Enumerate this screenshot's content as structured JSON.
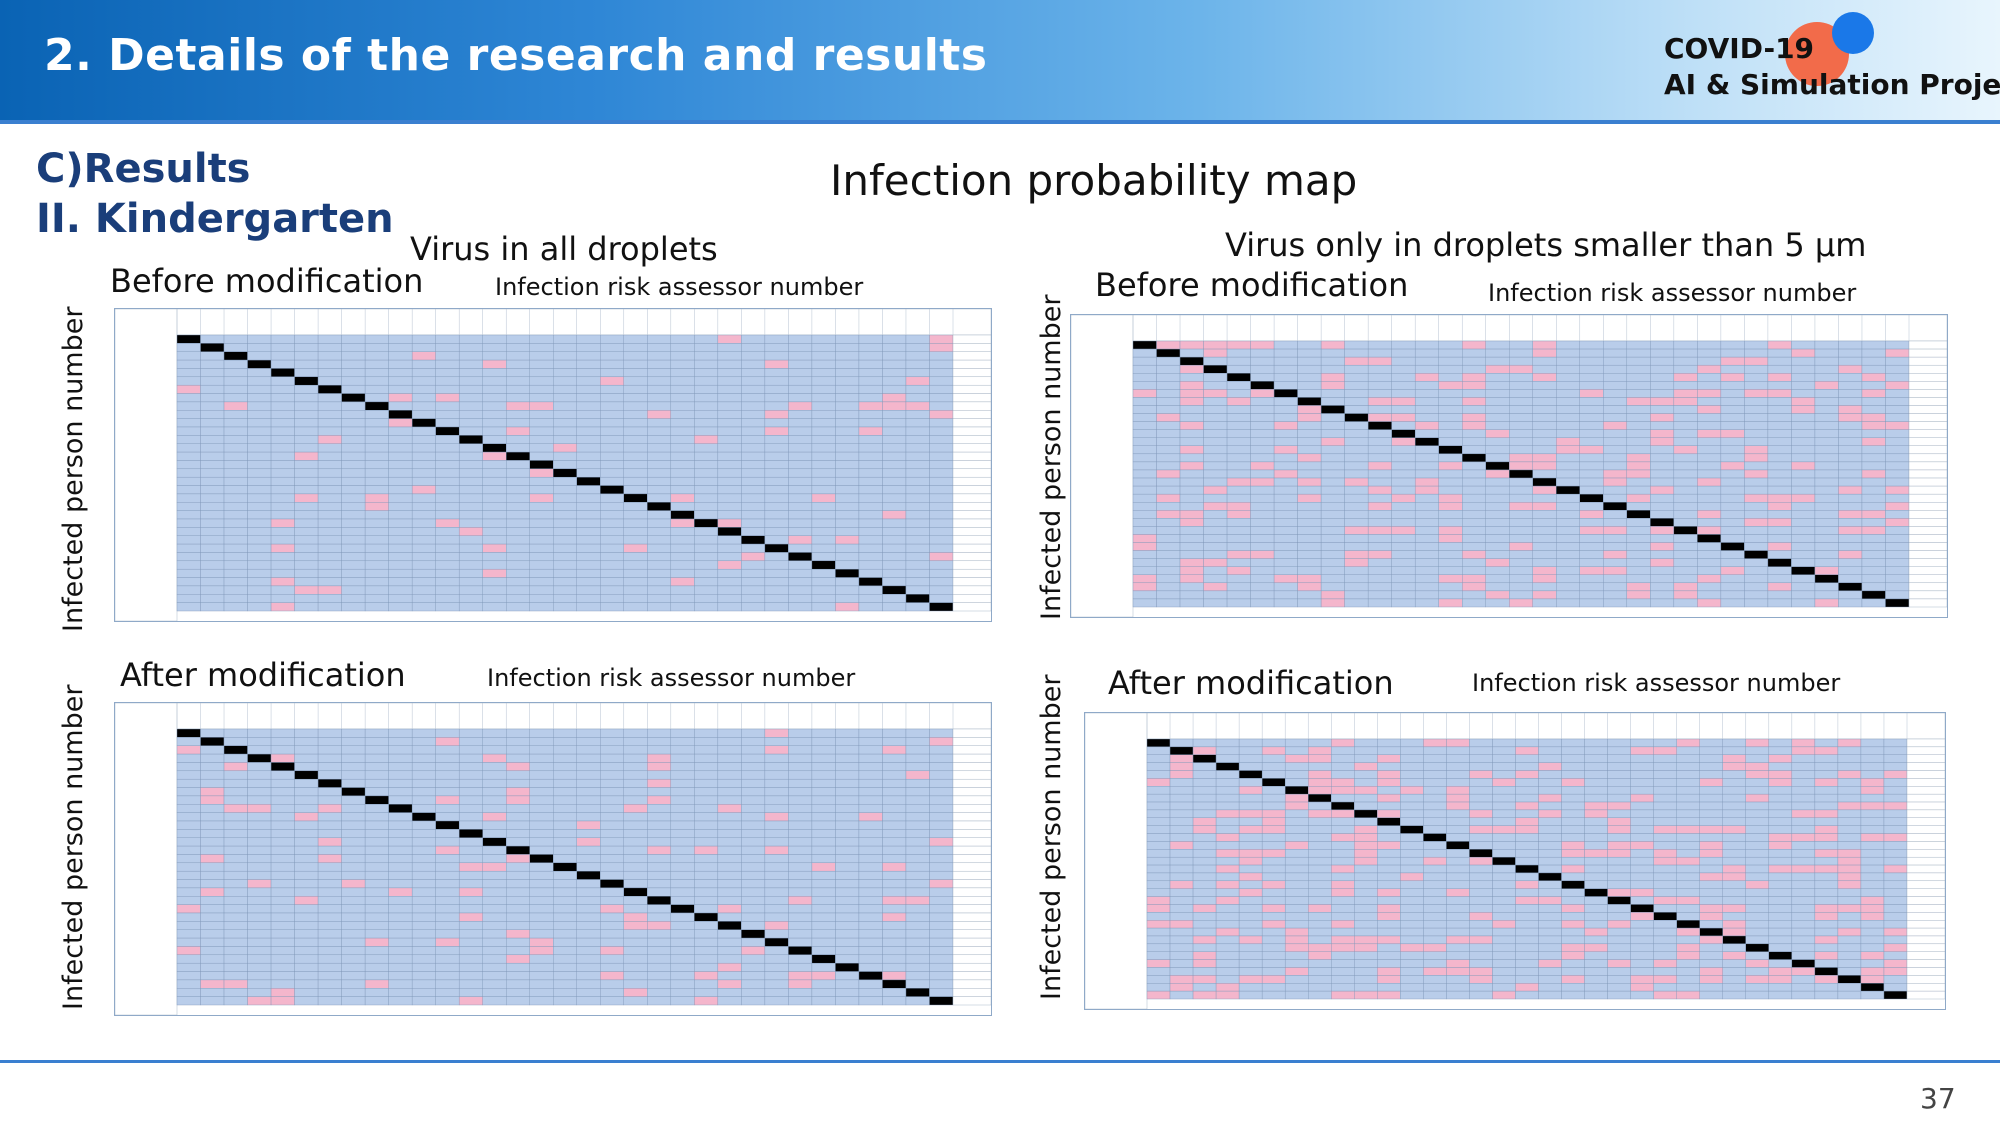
{
  "header": {
    "title": "2. Details of the research and results",
    "logo_line1": "COVID-19",
    "logo_line2": "AI & Simulation Project"
  },
  "section": {
    "line1": "C)Results",
    "line2": "II. Kindergarten"
  },
  "map_title": "Infection probability map",
  "left_group": {
    "title": "Virus in all droplets",
    "before": "Before modification",
    "after": "After modification"
  },
  "right_group": {
    "title": "Virus only in droplets smaller than 5 μm",
    "before": "Before modification",
    "after": "After modification"
  },
  "axis": {
    "x": "Infection risk assessor number",
    "y": "Infected person number"
  },
  "page_number": "37",
  "colors": {
    "header_start": "#0a63b4",
    "cell_blue": "#b9cdea",
    "cell_pink": "#f4b6cc",
    "diagonal": "#000000"
  }
}
